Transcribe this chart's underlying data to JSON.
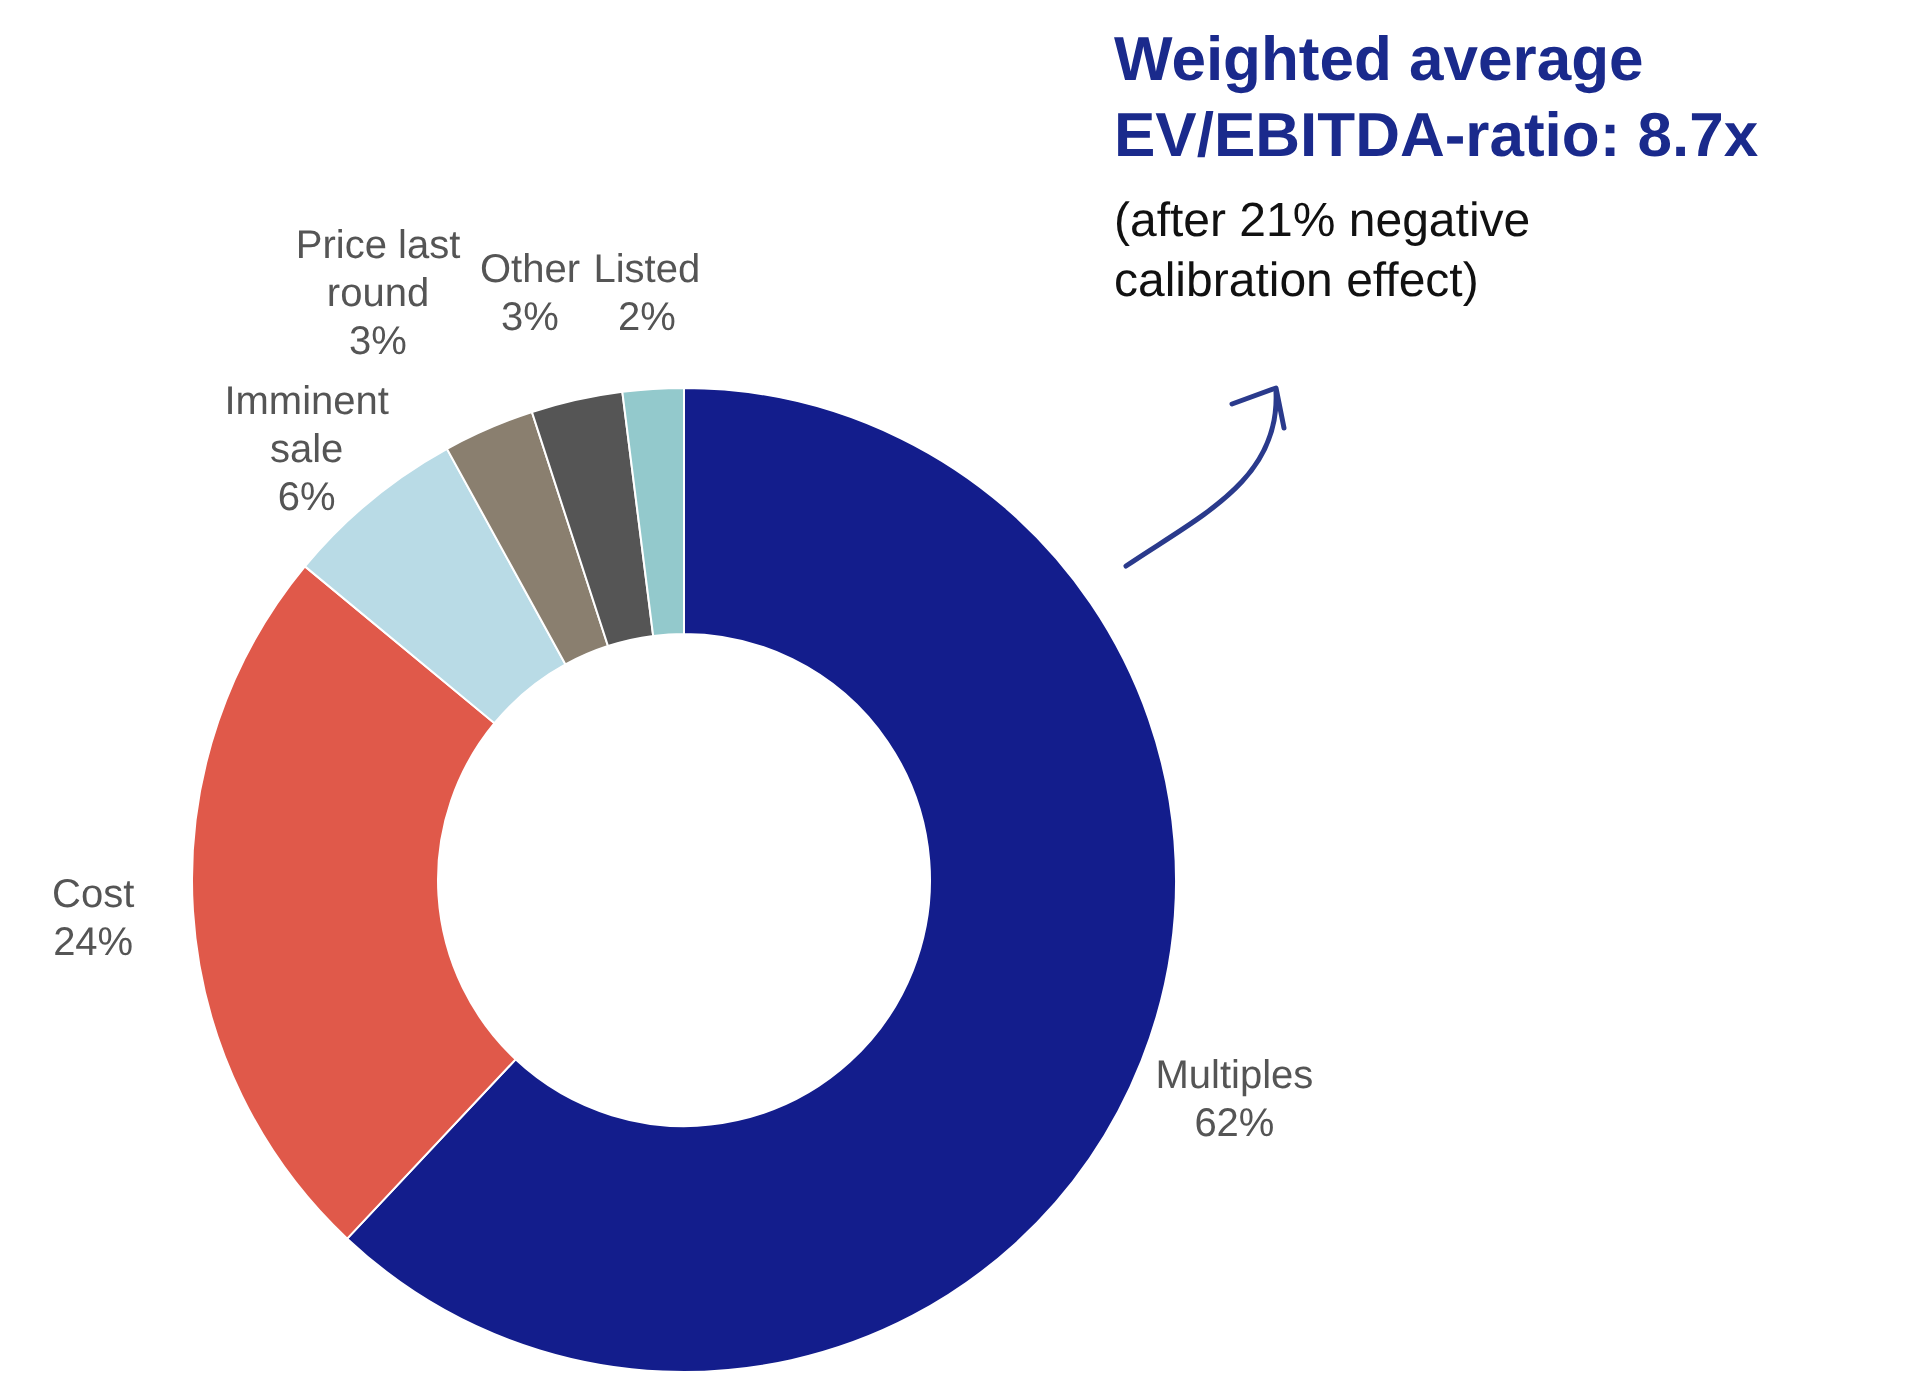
{
  "chart_data": {
    "type": "donut",
    "title": "Weighted average EV/EBITDA-ratio: 8.7x",
    "subtitle": "(after 21% negative calibration effect)",
    "categories": [
      "Multiples",
      "Cost",
      "Imminent sale",
      "Price last round",
      "Other",
      "Listed"
    ],
    "values": [
      62,
      24,
      6,
      3,
      3,
      2
    ],
    "value_labels": [
      "62%",
      "24%",
      "6%",
      "3%",
      "3%",
      "2%"
    ],
    "colors": [
      "#131d8c",
      "#e0594a",
      "#b9dbe6",
      "#8a7f6f",
      "#555555",
      "#93c9cc"
    ]
  }
}
